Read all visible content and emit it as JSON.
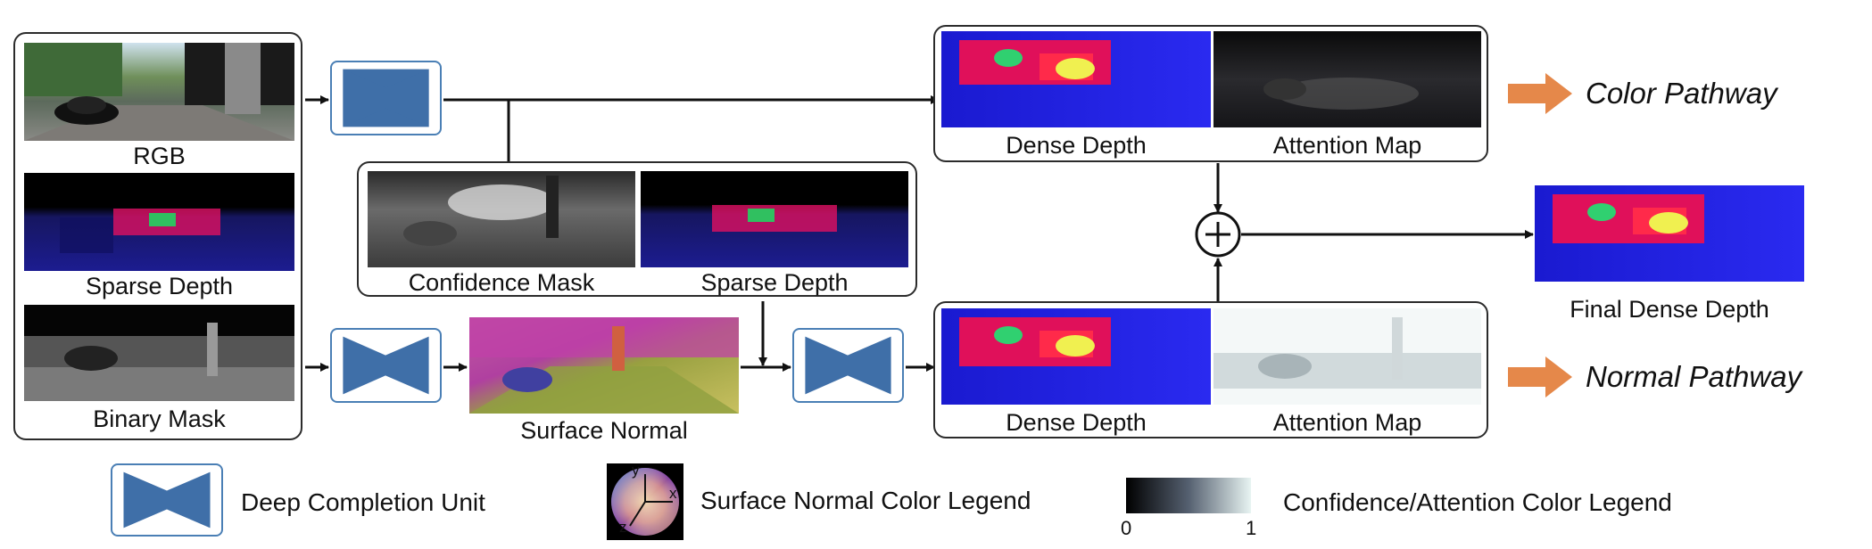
{
  "inputs": {
    "rgb_caption": "RGB",
    "sparse_caption": "Sparse Depth",
    "binary_caption": "Binary Mask"
  },
  "middle": {
    "confidence_caption": "Confidence Mask",
    "sparse_caption": "Sparse Depth",
    "surface_normal_caption": "Surface Normal"
  },
  "color_pathway": {
    "dense_caption": "Dense Depth",
    "attention_caption": "Attention Map",
    "label": "Color Pathway"
  },
  "normal_pathway": {
    "dense_caption": "Dense Depth",
    "attention_caption": "Attention Map",
    "label": "Normal Pathway"
  },
  "output": {
    "final_caption": "Final Dense Depth"
  },
  "legend": {
    "dcu_label": "Deep Completion Unit",
    "normal_label": "Surface Normal Color Legend",
    "confidence_label": "Confidence/Attention  Color Legend",
    "tick_min": "0",
    "tick_max": "1",
    "axis_y": "y",
    "axis_x": "x",
    "axis_z": "z"
  },
  "colors": {
    "dcu_fill": "#3f6fa8",
    "dcu_border": "#4a7fb5",
    "arrow_orange": "#e5884a",
    "line": "#111111"
  },
  "icons": [
    "deep-completion-unit-icon",
    "plus-icon",
    "arrow-right-icon"
  ]
}
